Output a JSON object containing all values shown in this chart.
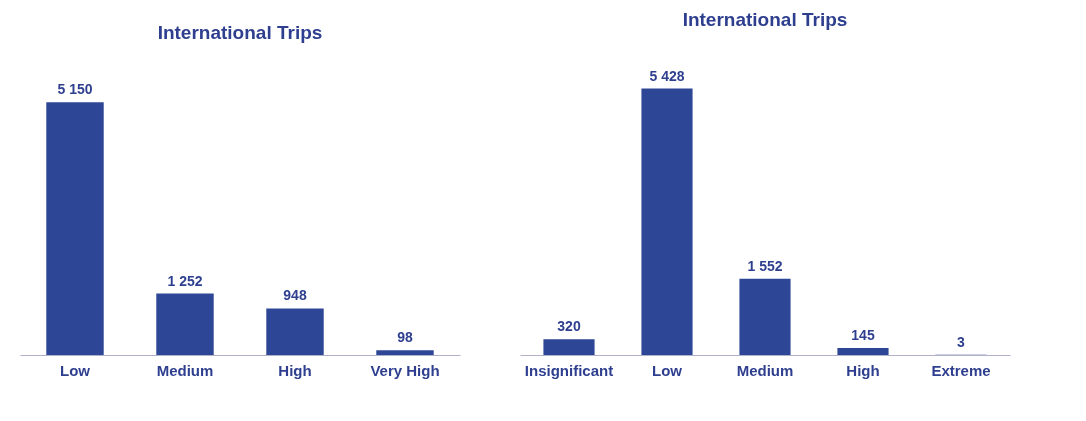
{
  "chart_data": [
    {
      "type": "bar",
      "title": "International Trips",
      "categories": [
        "Low",
        "Medium",
        "High",
        "Very High"
      ],
      "values": [
        5150,
        1252,
        948,
        98
      ],
      "value_labels": [
        "5 150",
        "1 252",
        "948",
        "98"
      ],
      "color": "#2e4696"
    },
    {
      "type": "bar",
      "title": "International Trips",
      "categories": [
        "Insignificant",
        "Low",
        "Medium",
        "High",
        "Extreme"
      ],
      "values": [
        320,
        5428,
        1552,
        145,
        3
      ],
      "value_labels": [
        "320",
        "5 428",
        "1 552",
        "145",
        "3"
      ],
      "color": "#2e4696"
    }
  ]
}
